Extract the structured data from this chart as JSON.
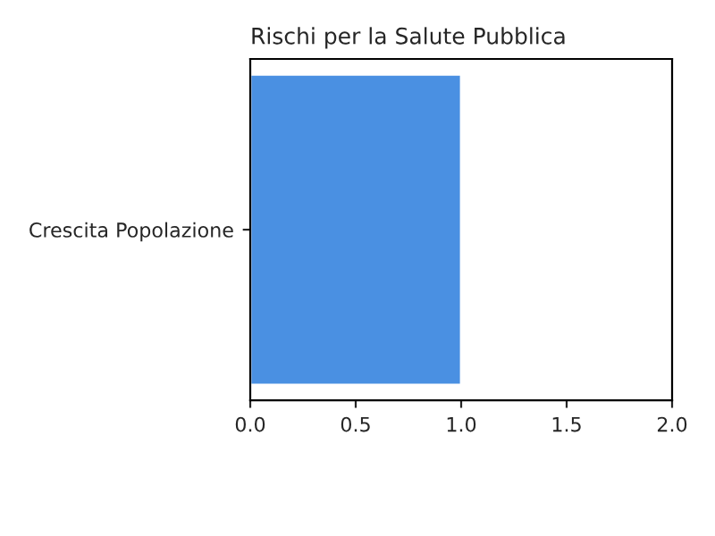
{
  "chart_data": {
    "type": "bar",
    "orientation": "horizontal",
    "title": "Rischi per la Salute Pubblica",
    "categories": [
      "Crescita Popolazione"
    ],
    "series": [
      {
        "color": "#4a90e2",
        "values": [
          1.0
        ]
      }
    ],
    "xlim": [
      0,
      2
    ],
    "xticks": [
      {
        "value": 0,
        "label": "0.0"
      },
      {
        "value": 0.5,
        "label": "0.5"
      },
      {
        "value": 1,
        "label": "1.0"
      },
      {
        "value": 1.5,
        "label": "1.5"
      },
      {
        "value": 2,
        "label": "2.0"
      }
    ],
    "grid": false,
    "legend": false
  }
}
